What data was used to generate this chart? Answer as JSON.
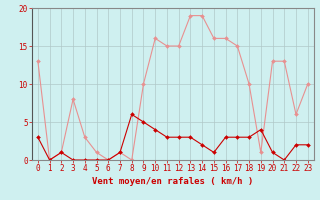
{
  "title": "",
  "xlabel": "Vent moyen/en rafales ( km/h )",
  "ylabel": "",
  "bg_color": "#cff0f0",
  "grid_color": "#b0c8c8",
  "x": [
    0,
    1,
    2,
    3,
    4,
    5,
    6,
    7,
    8,
    9,
    10,
    11,
    12,
    13,
    14,
    15,
    16,
    17,
    18,
    19,
    20,
    21,
    22,
    23
  ],
  "y_dark": [
    3,
    0,
    1,
    0,
    0,
    0,
    0,
    1,
    6,
    5,
    4,
    3,
    3,
    3,
    2,
    1,
    3,
    3,
    3,
    4,
    1,
    0,
    2,
    2
  ],
  "y_light": [
    13,
    0,
    1,
    8,
    3,
    1,
    0,
    1,
    0,
    10,
    16,
    15,
    15,
    19,
    19,
    16,
    16,
    15,
    10,
    1,
    13,
    13,
    6,
    10
  ],
  "color_dark": "#cc0000",
  "color_light": "#e89090",
  "xlim_min": -0.5,
  "xlim_max": 23.5,
  "ylim_min": 0,
  "ylim_max": 20,
  "yticks": [
    0,
    5,
    10,
    15,
    20
  ],
  "xticks": [
    0,
    1,
    2,
    3,
    4,
    5,
    6,
    7,
    8,
    9,
    10,
    11,
    12,
    13,
    14,
    15,
    16,
    17,
    18,
    19,
    20,
    21,
    22,
    23
  ],
  "tick_color": "#cc0000",
  "label_color": "#cc0000",
  "axis_label_fontsize": 6.5,
  "tick_fontsize": 5.5,
  "spine_color": "#888888",
  "left_spine_color": "#555555"
}
